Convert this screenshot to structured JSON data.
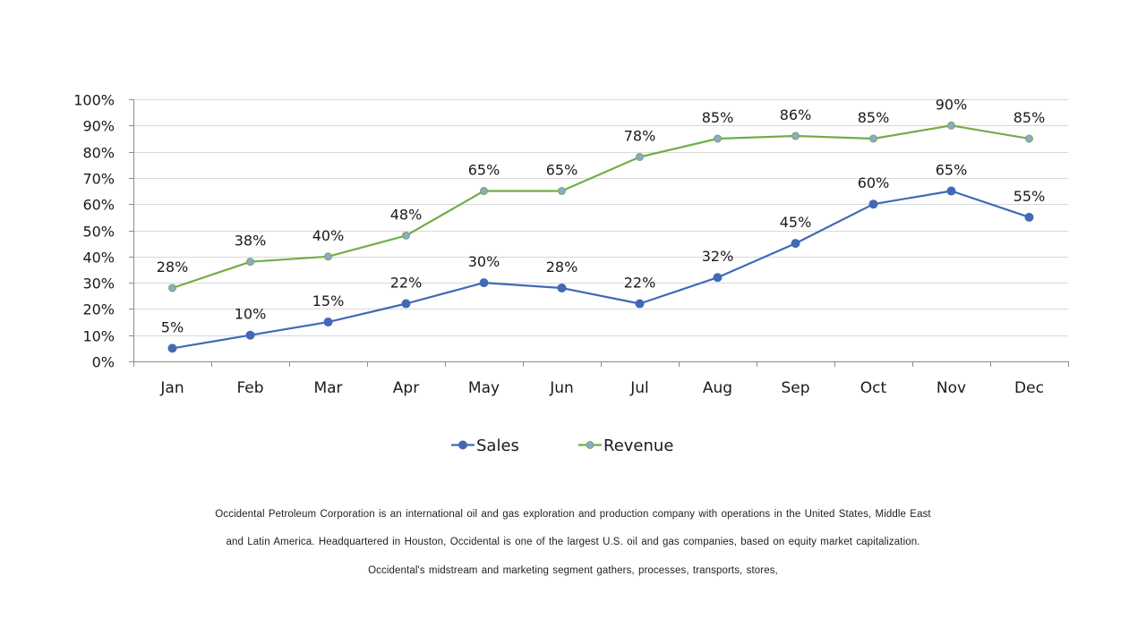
{
  "chart_data": {
    "type": "line",
    "title": "",
    "xlabel": "",
    "ylabel": "",
    "categories": [
      "Jan",
      "Feb",
      "Mar",
      "Apr",
      "May",
      "Jun",
      "Jul",
      "Aug",
      "Sep",
      "Oct",
      "Nov",
      "Dec"
    ],
    "ylim": [
      0,
      100
    ],
    "yticks": [
      "0%",
      "10%",
      "20%",
      "30%",
      "40%",
      "50%",
      "60%",
      "70%",
      "80%",
      "90%",
      "100%"
    ],
    "grid": true,
    "legend_position": "bottom",
    "series": [
      {
        "name": "Sales",
        "values": [
          5,
          10,
          15,
          22,
          30,
          28,
          22,
          32,
          45,
          60,
          65,
          55
        ],
        "labels": [
          "5%",
          "10%",
          "15%",
          "22%",
          "30%",
          "28%",
          "22%",
          "32%",
          "45%",
          "60%",
          "65%",
          "55%"
        ],
        "line_color": "#4169b5",
        "marker_fill": "#4169b5",
        "marker_stroke": "#4169b5"
      },
      {
        "name": "Revenue",
        "values": [
          28,
          38,
          40,
          48,
          65,
          65,
          78,
          85,
          86,
          85,
          90,
          85
        ],
        "labels": [
          "28%",
          "38%",
          "40%",
          "48%",
          "65%",
          "65%",
          "78%",
          "85%",
          "86%",
          "85%",
          "90%",
          "85%"
        ],
        "line_color": "#72ad48",
        "marker_fill": "#8fa6d3",
        "marker_stroke": "#72ad48"
      }
    ]
  },
  "caption": {
    "lines": [
      "Occidental  Petroleum Corporation  is an international  oil and gas exploration  and production  company  with operations  in the United States, Middle East",
      "and Latin America. Headquartered  in Houston, Occidental  is one of the largest U.S. oil and gas companies,  based on equity market capitalization.",
      "Occidental's  midstream and marketing  segment gathers,  processes, transports,  stores,"
    ]
  }
}
